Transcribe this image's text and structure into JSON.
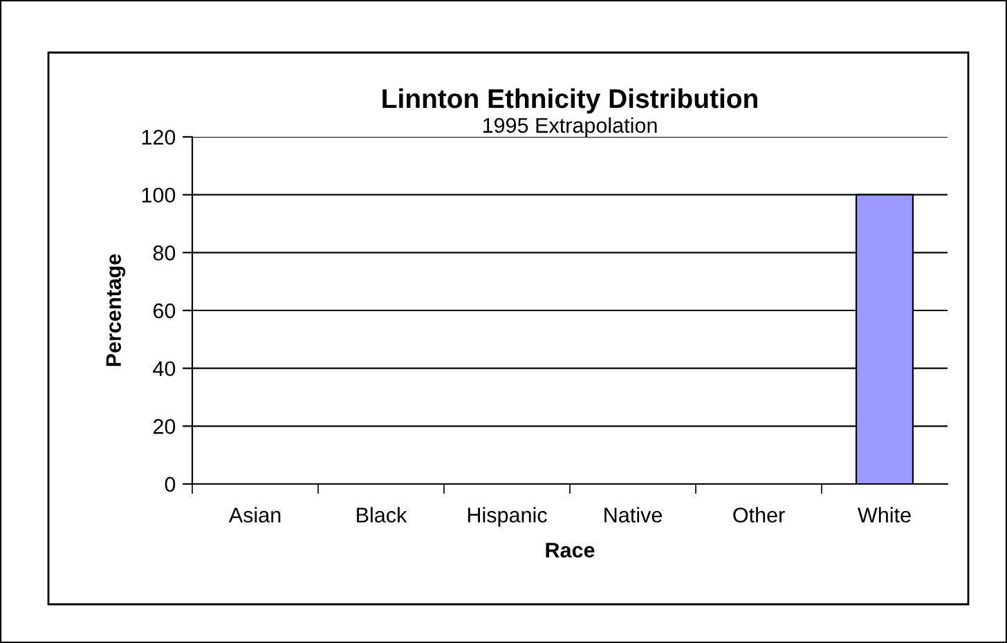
{
  "chart_data": {
    "type": "bar",
    "title": "Linnton Ethnicity Distribution",
    "subtitle": "1995 Extrapolation",
    "xlabel": "Race",
    "ylabel": "Percentage",
    "categories": [
      "Asian",
      "Black",
      "Hispanic",
      "Native",
      "Other",
      "White"
    ],
    "values": [
      0,
      0,
      0,
      0,
      0,
      100
    ],
    "color": "#9999ff",
    "ylim": [
      0,
      120
    ],
    "yticks": [
      0,
      20,
      40,
      60,
      80,
      100,
      120
    ],
    "grid": "y",
    "legend": false
  }
}
